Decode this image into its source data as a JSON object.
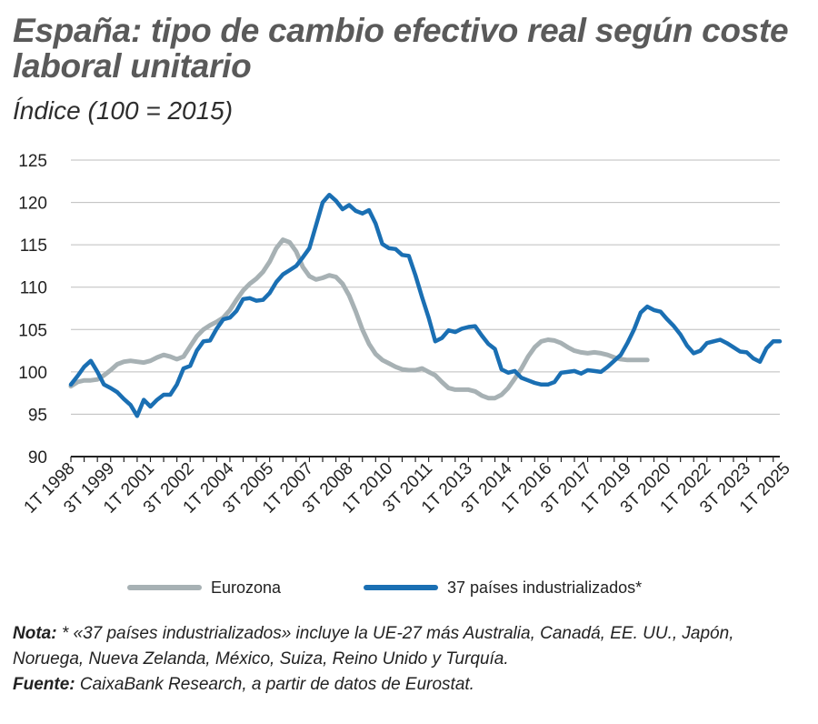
{
  "title": "España: tipo de cambio efectivo real según coste laboral unitario",
  "subtitle": "Índice (100 = 2015)",
  "note": {
    "label": "Nota:",
    "text": " * «37 países industrializados» incluye la UE-27 más Australia, Canadá, EE. UU., Japón, Noruega, Nueva Zelanda, México, Suiza, Reino Unido y Turquía."
  },
  "source": {
    "label": "Fuente:",
    "text": " CaixaBank Research, a partir de datos de Eurostat."
  },
  "chart_data": {
    "type": "line",
    "y_ticks": [
      90,
      95,
      100,
      105,
      110,
      115,
      120,
      125
    ],
    "ylim": [
      90,
      125
    ],
    "grid": true,
    "x_start": "1T 1998",
    "x_tick_labels": [
      "1T 1998",
      "3T 1999",
      "1T 2001",
      "3T 2002",
      "1T 2004",
      "3T 2005",
      "1T 2007",
      "3T 2008",
      "1T 2010",
      "3T 2011",
      "1T 2013",
      "3T 2014",
      "1T 2016",
      "3T 2017",
      "1T 2019",
      "3T 2020",
      "1T 2022",
      "3T 2023",
      "1T 2025"
    ],
    "legend_position": "bottom",
    "series": [
      {
        "name": "Eurozona",
        "color": "#a7b1b4",
        "values": [
          98.3,
          98.8,
          99.0,
          99.0,
          99.1,
          99.6,
          100.2,
          100.9,
          101.2,
          101.3,
          101.2,
          101.1,
          101.3,
          101.7,
          102.0,
          101.8,
          101.5,
          101.8,
          103.0,
          104.2,
          105.0,
          105.5,
          105.9,
          106.4,
          107.3,
          108.5,
          109.6,
          110.4,
          111.0,
          111.8,
          113.0,
          114.6,
          115.6,
          115.3,
          114.2,
          112.4,
          111.3,
          110.9,
          111.1,
          111.4,
          111.2,
          110.4,
          109.0,
          107.1,
          105.0,
          103.3,
          102.1,
          101.4,
          101.0,
          100.6,
          100.3,
          100.2,
          100.2,
          100.4,
          100.0,
          99.6,
          98.8,
          98.1,
          97.9,
          97.9,
          97.9,
          97.7,
          97.2,
          96.9,
          96.9,
          97.3,
          98.1,
          99.2,
          100.4,
          101.8,
          102.9,
          103.6,
          103.8,
          103.7,
          103.4,
          102.9,
          102.5,
          102.3,
          102.2,
          102.3,
          102.2,
          102.0,
          101.7,
          101.5,
          101.4,
          101.4,
          101.4,
          101.4
        ]
      },
      {
        "name": "37 países industrializados*",
        "color": "#1a6fb3",
        "values": [
          98.5,
          99.5,
          100.6,
          101.3,
          100.0,
          98.5,
          98.1,
          97.6,
          96.8,
          96.1,
          94.8,
          96.7,
          95.9,
          96.7,
          97.3,
          97.3,
          98.5,
          100.4,
          100.7,
          102.5,
          103.6,
          103.7,
          105.1,
          106.2,
          106.4,
          107.2,
          108.6,
          108.7,
          108.4,
          108.5,
          109.3,
          110.6,
          111.5,
          112.0,
          112.5,
          113.5,
          114.6,
          117.3,
          120.0,
          120.9,
          120.2,
          119.2,
          119.7,
          119.0,
          118.7,
          119.1,
          117.5,
          115.1,
          114.6,
          114.5,
          113.8,
          113.7,
          111.4,
          108.8,
          106.4,
          103.6,
          104.0,
          104.9,
          104.7,
          105.1,
          105.3,
          105.4,
          104.3,
          103.3,
          102.7,
          100.3,
          99.9,
          100.1,
          99.3,
          99.0,
          98.7,
          98.5,
          98.5,
          98.8,
          99.9,
          100.0,
          100.1,
          99.8,
          100.2,
          100.1,
          100.0,
          100.6,
          101.3,
          102.0,
          103.4,
          105.0,
          107.0,
          107.7,
          107.3,
          107.1,
          106.2,
          105.4,
          104.4,
          103.1,
          102.2,
          102.5,
          103.4,
          103.6,
          103.8,
          103.4,
          102.9,
          102.4,
          102.3,
          101.6,
          101.2,
          102.8,
          103.6,
          103.6
        ]
      }
    ]
  }
}
